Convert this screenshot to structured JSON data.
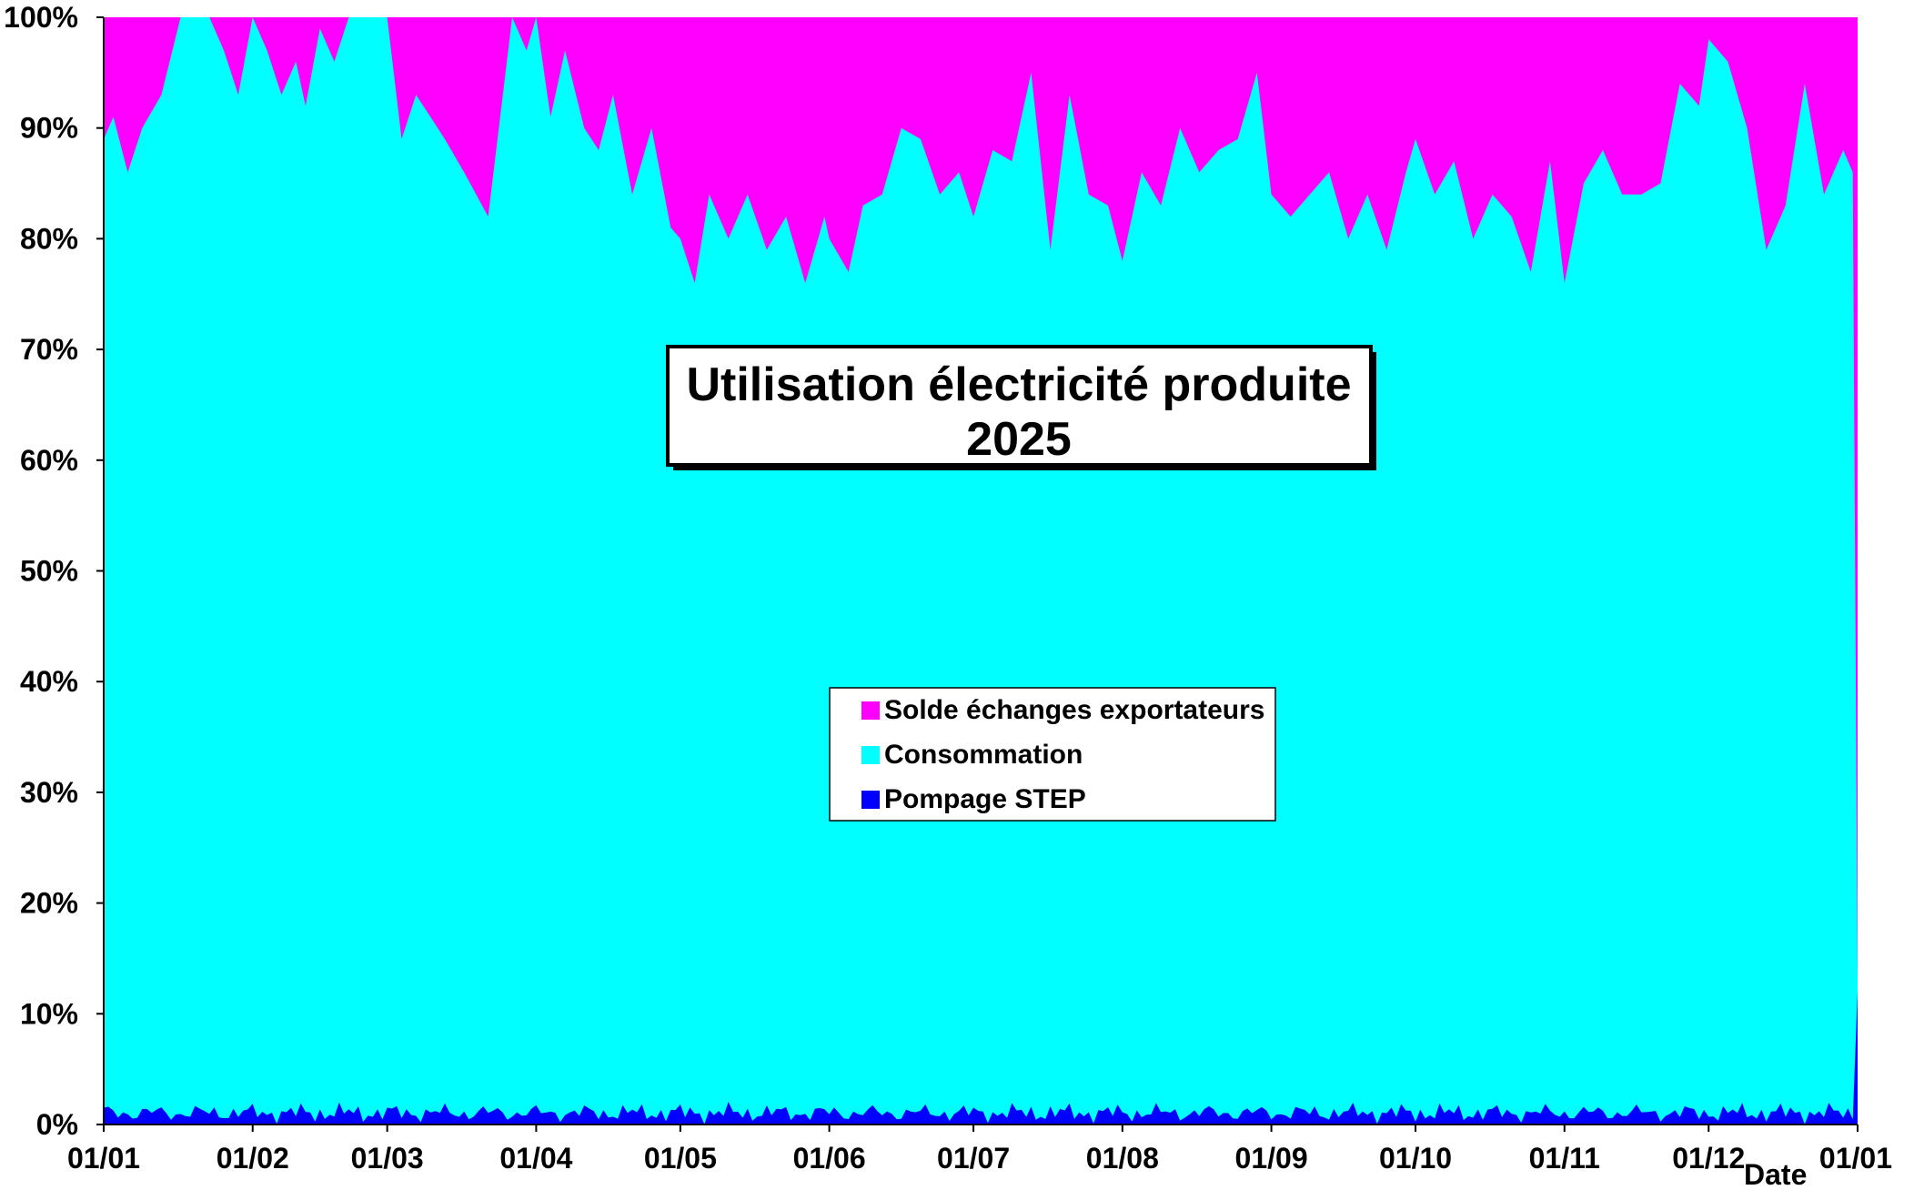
{
  "chart_data": {
    "type": "area",
    "stacked": true,
    "normalized": true,
    "title": "Utilisation électricité produite",
    "subtitle": "2025",
    "xlabel": "Date",
    "ylabel": "",
    "ylim": [
      0,
      100
    ],
    "y_ticks": [
      "0%",
      "10%",
      "20%",
      "30%",
      "40%",
      "50%",
      "60%",
      "70%",
      "80%",
      "90%",
      "100%"
    ],
    "x_ticks": [
      "01/01",
      "01/02",
      "01/03",
      "01/04",
      "01/05",
      "01/06",
      "01/07",
      "01/08",
      "01/09",
      "01/10",
      "01/11",
      "01/12",
      "01/01"
    ],
    "x_tick_days": [
      0,
      31,
      59,
      90,
      120,
      151,
      181,
      212,
      243,
      273,
      304,
      334,
      365
    ],
    "legend_position": "center",
    "colors": {
      "solde": "#FF00FF",
      "consommation": "#00FFFF",
      "pompage": "#0000FF"
    },
    "series": [
      {
        "name": "Solde échanges exportateurs",
        "color": "#FF00FF",
        "description": "remainder up to 100%"
      },
      {
        "name": "Consommation",
        "color": "#00FFFF",
        "cumulative_top_by_month": {
          "x_days": [
            0,
            2,
            5,
            8,
            12,
            16,
            18,
            20,
            22,
            25,
            28,
            31,
            34,
            37,
            40,
            42,
            45,
            48,
            51,
            54,
            57,
            59,
            62,
            65,
            68,
            71,
            75,
            80,
            85,
            88,
            90,
            93,
            96,
            100,
            103,
            106,
            110,
            114,
            118,
            120,
            123,
            126,
            130,
            134,
            138,
            142,
            146,
            150,
            151,
            155,
            158,
            162,
            166,
            170,
            174,
            178,
            181,
            185,
            189,
            193,
            197,
            201,
            205,
            209,
            212,
            216,
            220,
            224,
            228,
            232,
            236,
            240,
            243,
            247,
            251,
            255,
            259,
            263,
            267,
            271,
            273,
            277,
            281,
            285,
            289,
            293,
            297,
            301,
            304,
            308,
            312,
            316,
            320,
            324,
            328,
            332,
            334,
            338,
            342,
            346,
            350,
            354,
            358,
            362,
            364,
            365
          ],
          "values": [
            89,
            91,
            86,
            90,
            93,
            100,
            100,
            100,
            100,
            97,
            93,
            100,
            97,
            93,
            96,
            92,
            99,
            96,
            100,
            100,
            100,
            100,
            89,
            93,
            91,
            89,
            86,
            82,
            100,
            97,
            100,
            91,
            97,
            90,
            88,
            93,
            84,
            90,
            81,
            80,
            76,
            84,
            80,
            84,
            79,
            82,
            76,
            82,
            80,
            77,
            83,
            84,
            90,
            89,
            84,
            86,
            82,
            88,
            87,
            95,
            79,
            93,
            84,
            83,
            78,
            86,
            83,
            90,
            86,
            88,
            89,
            95,
            84,
            82,
            84,
            86,
            80,
            84,
            79,
            86,
            89,
            84,
            87,
            80,
            84,
            82,
            77,
            87,
            76,
            85,
            88,
            84,
            84,
            85,
            94,
            92,
            98,
            96,
            90,
            79,
            83,
            94,
            84,
            88,
            86,
            13
          ]
        }
      },
      {
        "name": "Pompage STEP",
        "color": "#0000FF",
        "typical_range": [
          0,
          3
        ],
        "last_value": 12
      }
    ]
  }
}
